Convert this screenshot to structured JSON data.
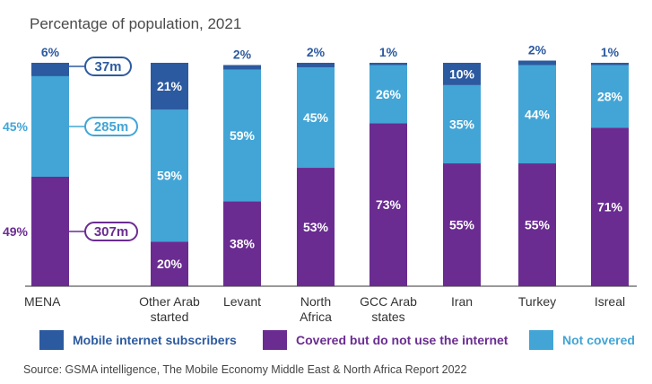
{
  "title": "Percentage of population, 2021",
  "source": "Source: GSMA intelligence, The Mobile Economy Middle East & North Africa Report 2022",
  "colors": {
    "subscribers": "#2c5aa0",
    "covered": "#6a2c91",
    "not_covered": "#42a5d6",
    "axis": "#333333"
  },
  "legend": {
    "subscribers": "Mobile internet subscribers",
    "covered": "Covered but do not use the internet",
    "not_covered": "Not covered"
  },
  "mena_callouts": [
    "37m",
    "285m",
    "307m"
  ],
  "chart_data": {
    "type": "bar",
    "stacked": true,
    "categories": [
      [
        "MENA"
      ],
      [
        "Other Arab",
        "started"
      ],
      [
        "Levant"
      ],
      [
        "North",
        "Africa"
      ],
      [
        "GCC Arab",
        "states"
      ],
      [
        "Iran"
      ],
      [
        "Turkey"
      ],
      [
        "Isreal"
      ]
    ],
    "series": [
      {
        "name": "Covered but do not use the internet",
        "key": "covered",
        "values": [
          49,
          20,
          38,
          53,
          73,
          55,
          55,
          71
        ]
      },
      {
        "name": "Not covered",
        "key": "not_covered",
        "values": [
          45,
          59,
          59,
          45,
          26,
          35,
          44,
          28
        ]
      },
      {
        "name": "Mobile internet subscribers",
        "key": "subscribers",
        "values": [
          6,
          21,
          2,
          2,
          1,
          10,
          2,
          1
        ]
      }
    ],
    "title": "Percentage of population, 2021",
    "ylim": [
      0,
      100
    ],
    "legend_position": "bottom",
    "grid": false
  }
}
